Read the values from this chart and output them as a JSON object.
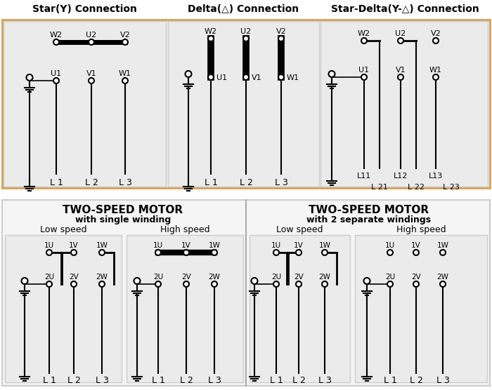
{
  "title_star": "Star(Y) Connection",
  "title_delta": "Delta(△) Connection",
  "title_stardelta": "Star-Delta(Y-△) Connection",
  "title_twospeed1": "TWO-SPEED MOTOR",
  "title_twospeed1_sub": "with single winding",
  "title_twospeed2": "TWO-SPEED MOTOR",
  "title_twospeed2_sub": "with 2 separate windings",
  "fig_bg": "#ffffff",
  "panel_bg": "#ebebeb",
  "outer_border": "#d4a050"
}
